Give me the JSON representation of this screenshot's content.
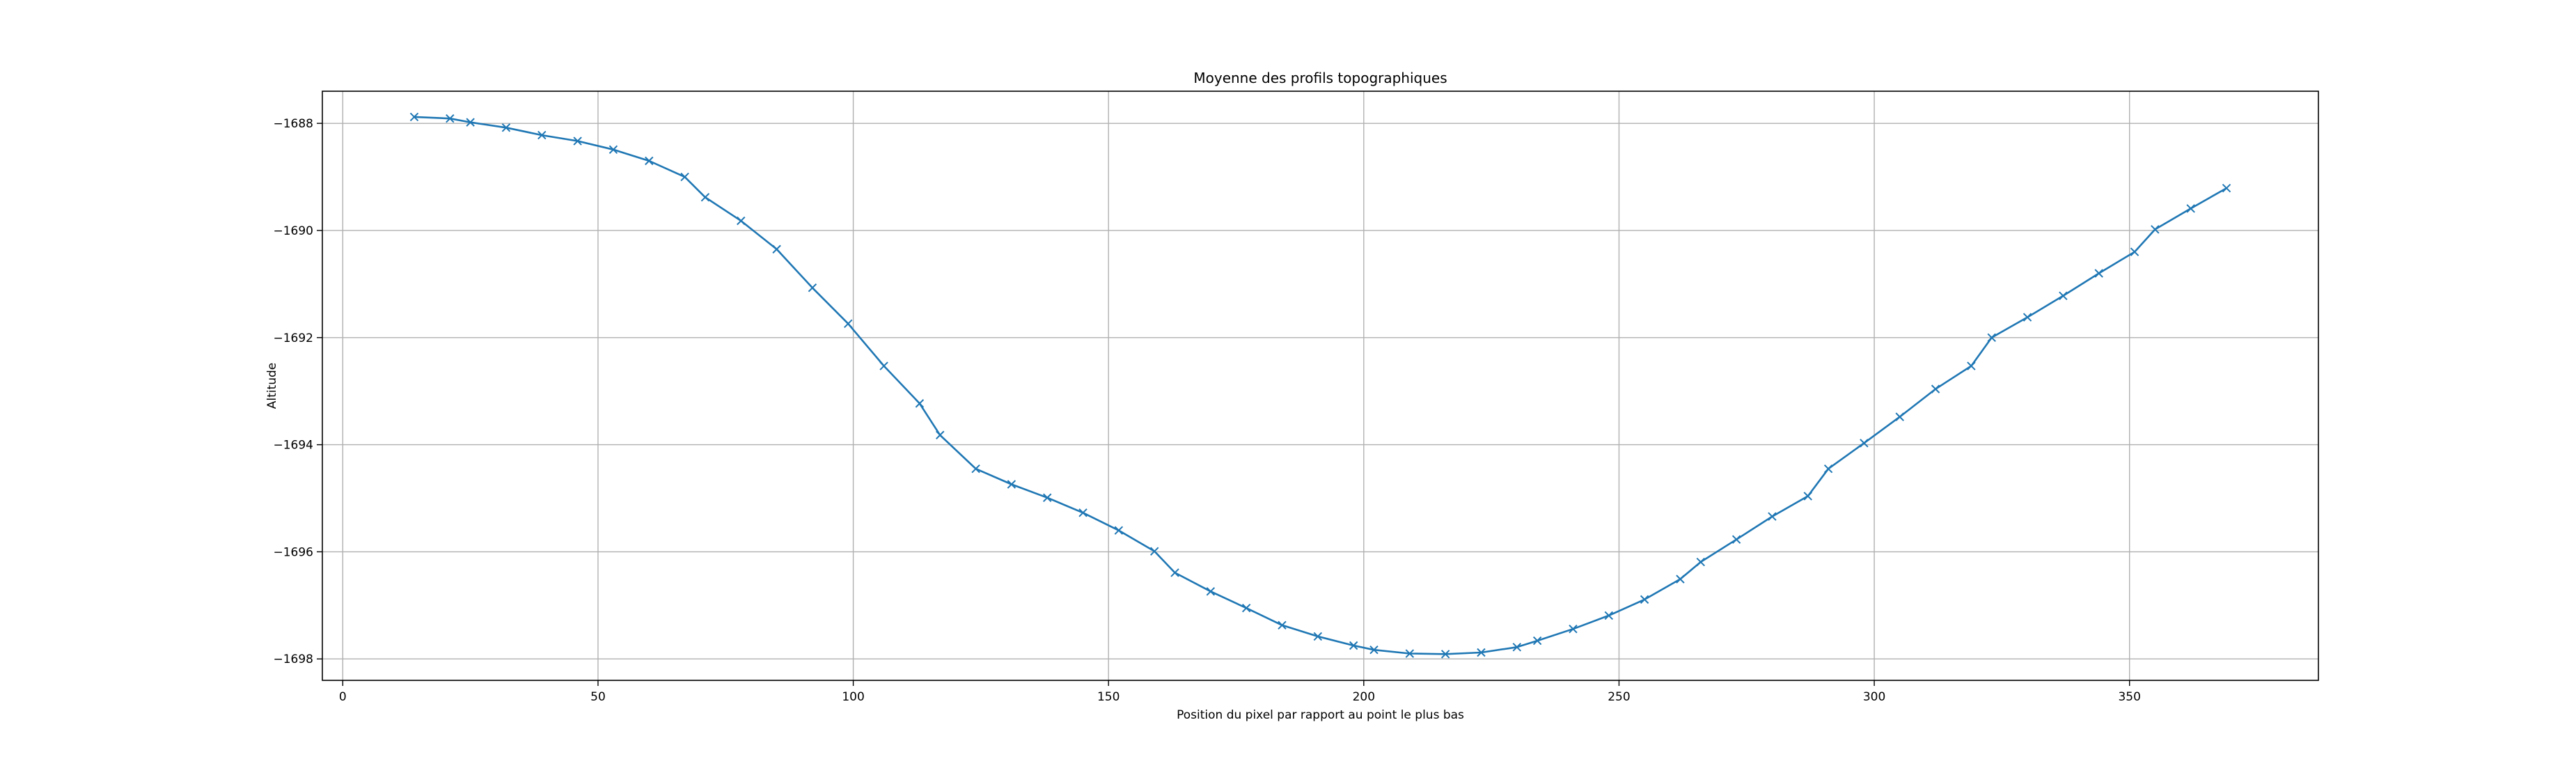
{
  "chart_data": {
    "type": "line",
    "title": "Moyenne des profils topographiques",
    "xlabel": "Position du pixel par rapport au point le plus bas",
    "ylabel": "Altitude",
    "xlim": [
      -4,
      387
    ],
    "ylim": [
      -1698.4,
      -1687.4
    ],
    "xticks": [
      0,
      50,
      100,
      150,
      200,
      250,
      300,
      350
    ],
    "yticks": [
      -1698,
      -1696,
      -1694,
      -1692,
      -1690,
      -1688
    ],
    "xtick_labels": [
      "0",
      "50",
      "100",
      "150",
      "200",
      "250",
      "300",
      "350"
    ],
    "ytick_labels": [
      "−1698",
      "−1696",
      "−1694",
      "−1692",
      "−1690",
      "−1688"
    ],
    "grid": true,
    "marker": "x",
    "line_color": "#1f77b4",
    "x": [
      14,
      21,
      25,
      32,
      39,
      46,
      53,
      60,
      67,
      71,
      78,
      85,
      92,
      99,
      106,
      113,
      117,
      124,
      131,
      138,
      145,
      152,
      159,
      163,
      170,
      177,
      184,
      191,
      198,
      202,
      209,
      216,
      223,
      230,
      234,
      241,
      248,
      255,
      262,
      266,
      273,
      280,
      287,
      291,
      298,
      305,
      312,
      319,
      323,
      330,
      337,
      344,
      351,
      355,
      362,
      369
    ],
    "y": [
      -1687.88,
      -1687.91,
      -1687.98,
      -1688.08,
      -1688.22,
      -1688.33,
      -1688.49,
      -1688.7,
      -1689.0,
      -1689.38,
      -1689.82,
      -1690.35,
      -1691.07,
      -1691.74,
      -1692.53,
      -1693.23,
      -1693.82,
      -1694.45,
      -1694.74,
      -1694.99,
      -1695.27,
      -1695.6,
      -1695.99,
      -1696.39,
      -1696.74,
      -1697.05,
      -1697.37,
      -1697.58,
      -1697.75,
      -1697.83,
      -1697.9,
      -1697.91,
      -1697.88,
      -1697.78,
      -1697.66,
      -1697.44,
      -1697.19,
      -1696.89,
      -1696.51,
      -1696.19,
      -1695.77,
      -1695.34,
      -1694.96,
      -1694.45,
      -1693.97,
      -1693.48,
      -1692.96,
      -1692.53,
      -1692.0,
      -1691.62,
      -1691.22,
      -1690.8,
      -1690.4,
      -1689.98,
      -1689.59,
      -1689.21
    ]
  }
}
